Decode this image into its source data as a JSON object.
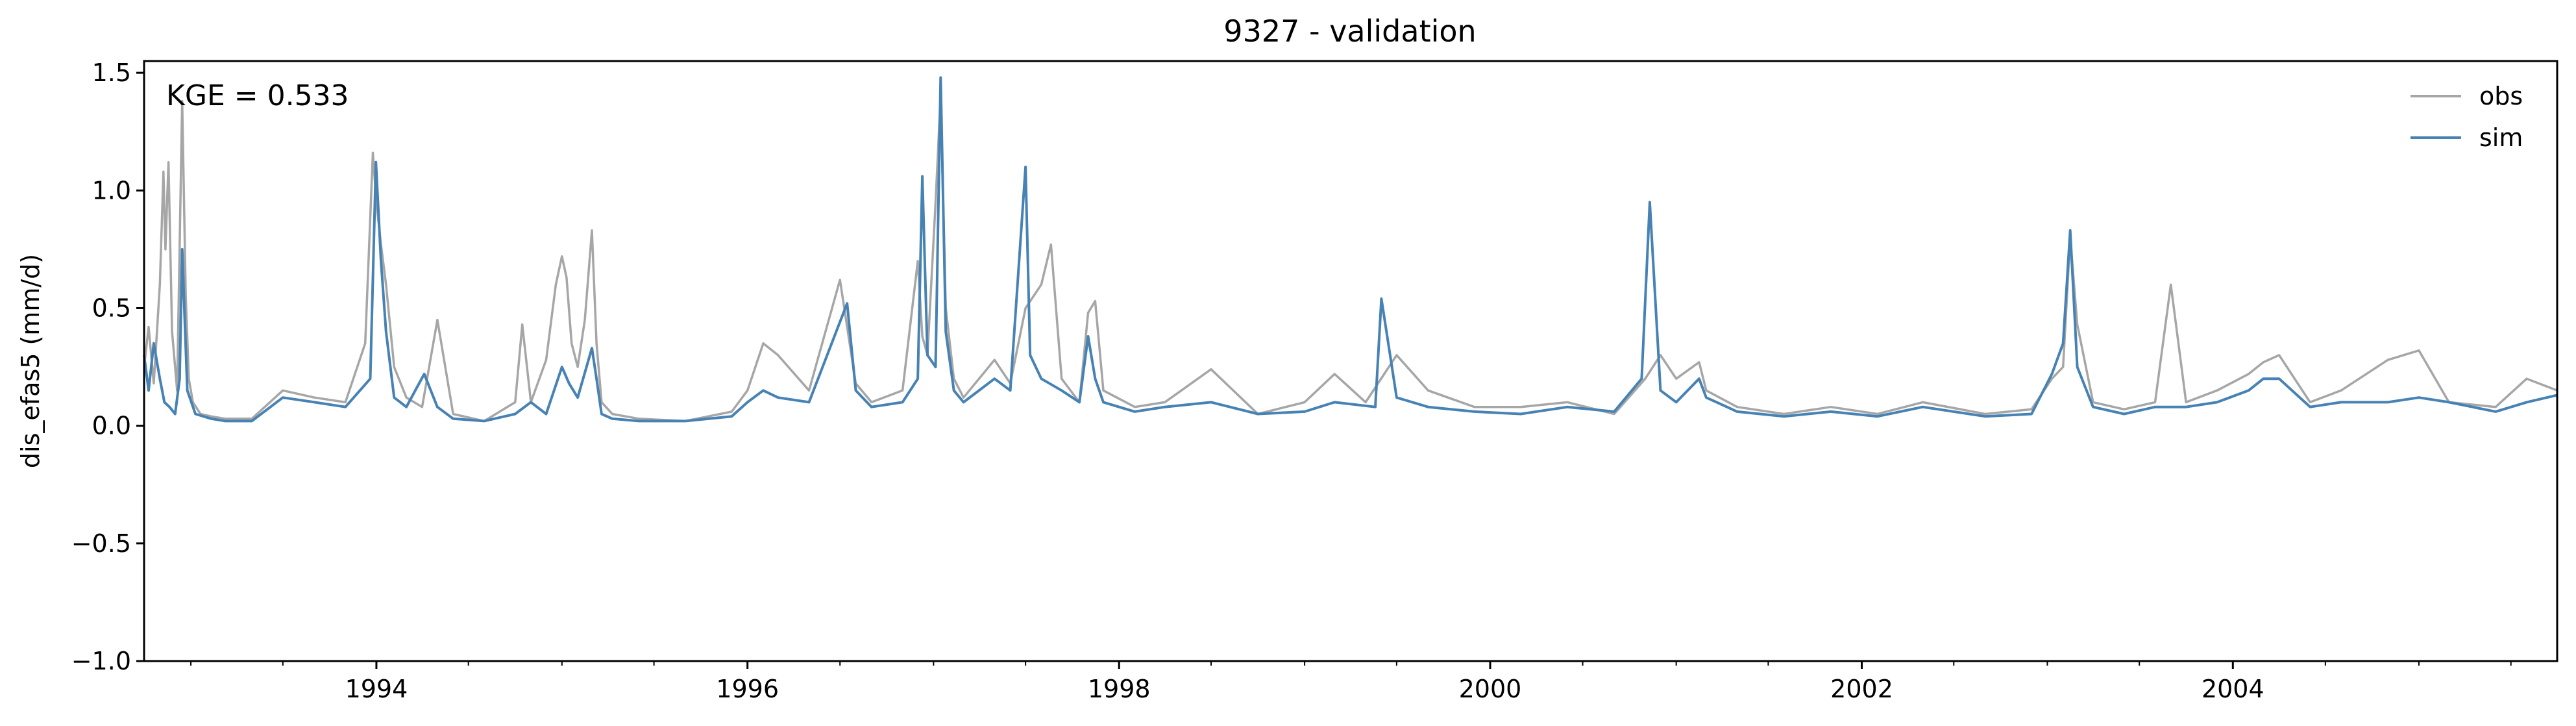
{
  "chart_data": {
    "type": "line",
    "title": "9327 - validation",
    "xlabel": "",
    "ylabel": "dis_efas5 (mm/d)",
    "annotation": "KGE = 0.533",
    "xlim": [
      "1992-10-01",
      "2005-09-30"
    ],
    "ylim": [
      -1.0,
      1.55
    ],
    "x_ticks": [
      "1994",
      "1996",
      "1998",
      "2000",
      "2002",
      "2004"
    ],
    "x_tick_dates": [
      "1994-01-01",
      "1996-01-01",
      "1998-01-01",
      "2000-01-01",
      "2002-01-01",
      "2004-01-01"
    ],
    "x_minor_tick_dates": [
      "1993-01-01",
      "1993-07-01",
      "1994-07-01",
      "1995-01-01",
      "1995-07-01",
      "1996-07-01",
      "1997-01-01",
      "1997-07-01",
      "1998-07-01",
      "1999-01-01",
      "1999-07-01",
      "2000-07-01",
      "2001-01-01",
      "2001-07-01",
      "2002-07-01",
      "2003-01-01",
      "2003-07-01",
      "2004-07-01",
      "2005-01-01",
      "2005-07-01"
    ],
    "y_ticks": [
      -1.0,
      -0.5,
      0.0,
      0.5,
      1.0,
      1.5
    ],
    "y_tick_labels": [
      "−1.0",
      "−0.5",
      "0.0",
      "0.5",
      "1.0",
      "1.5"
    ],
    "grid": false,
    "legend_position": "top-right",
    "series": [
      {
        "name": "obs",
        "color": "#a6a6a6",
        "x": [
          "1992-10-01",
          "1992-10-10",
          "1992-10-20",
          "1992-11-01",
          "1992-11-08",
          "1992-11-12",
          "1992-11-18",
          "1992-11-25",
          "1992-12-05",
          "1992-12-15",
          "1992-12-22",
          "1992-12-28",
          "1993-01-05",
          "1993-01-20",
          "1993-02-10",
          "1993-03-10",
          "1993-05-01",
          "1993-07-01",
          "1993-09-01",
          "1993-11-01",
          "1993-12-10",
          "1993-12-25",
          "1994-01-01",
          "1994-01-10",
          "1994-01-20",
          "1994-02-05",
          "1994-03-01",
          "1994-04-01",
          "1994-05-01",
          "1994-06-01",
          "1994-08-01",
          "1994-10-01",
          "1994-10-15",
          "1994-11-01",
          "1994-12-01",
          "1994-12-20",
          "1995-01-01",
          "1995-01-10",
          "1995-01-20",
          "1995-02-01",
          "1995-02-15",
          "1995-03-01",
          "1995-03-10",
          "1995-03-20",
          "1995-04-10",
          "1995-06-01",
          "1995-09-01",
          "1995-12-01",
          "1996-01-01",
          "1996-02-01",
          "1996-03-01",
          "1996-05-01",
          "1996-07-01",
          "1996-08-01",
          "1996-09-01",
          "1996-11-01",
          "1996-12-01",
          "1996-12-10",
          "1996-12-20",
          "1997-01-05",
          "1997-01-15",
          "1997-01-25",
          "1997-02-10",
          "1997-03-01",
          "1997-05-01",
          "1997-06-01",
          "1997-07-01",
          "1997-08-01",
          "1997-08-20",
          "1997-09-10",
          "1997-10-15",
          "1997-11-01",
          "1997-11-15",
          "1997-12-01",
          "1998-02-01",
          "1998-04-01",
          "1998-07-01",
          "1998-10-01",
          "1999-01-01",
          "1999-03-01",
          "1999-05-01",
          "1999-07-01",
          "1999-09-01",
          "1999-12-01",
          "2000-03-01",
          "2000-06-01",
          "2000-09-01",
          "2000-11-01",
          "2000-12-01",
          "2001-01-01",
          "2001-02-15",
          "2001-03-01",
          "2001-05-01",
          "2001-08-01",
          "2001-11-01",
          "2002-02-01",
          "2002-05-01",
          "2002-09-01",
          "2002-12-01",
          "2003-01-10",
          "2003-02-01",
          "2003-02-15",
          "2003-03-01",
          "2003-04-01",
          "2003-06-01",
          "2003-08-01",
          "2003-09-01",
          "2003-10-01",
          "2003-12-01",
          "2004-02-01",
          "2004-03-01",
          "2004-04-01",
          "2004-06-01",
          "2004-08-01",
          "2004-11-01",
          "2005-01-01",
          "2005-03-01",
          "2005-06-01",
          "2005-08-01",
          "2005-09-30"
        ],
        "y": [
          0.25,
          0.42,
          0.18,
          0.6,
          1.08,
          0.75,
          1.12,
          0.4,
          0.15,
          1.38,
          0.55,
          0.2,
          0.1,
          0.05,
          0.04,
          0.03,
          0.03,
          0.15,
          0.12,
          0.1,
          0.35,
          1.16,
          0.95,
          0.77,
          0.6,
          0.25,
          0.12,
          0.08,
          0.45,
          0.05,
          0.02,
          0.1,
          0.43,
          0.1,
          0.28,
          0.6,
          0.72,
          0.63,
          0.35,
          0.25,
          0.45,
          0.83,
          0.35,
          0.1,
          0.05,
          0.03,
          0.02,
          0.06,
          0.15,
          0.35,
          0.3,
          0.15,
          0.62,
          0.18,
          0.1,
          0.15,
          0.7,
          0.38,
          0.3,
          0.95,
          1.4,
          0.5,
          0.2,
          0.12,
          0.28,
          0.18,
          0.5,
          0.6,
          0.77,
          0.2,
          0.1,
          0.48,
          0.53,
          0.15,
          0.08,
          0.1,
          0.24,
          0.05,
          0.1,
          0.22,
          0.1,
          0.3,
          0.15,
          0.08,
          0.08,
          0.1,
          0.05,
          0.2,
          0.3,
          0.2,
          0.27,
          0.15,
          0.08,
          0.05,
          0.08,
          0.05,
          0.1,
          0.05,
          0.07,
          0.2,
          0.25,
          0.8,
          0.43,
          0.1,
          0.07,
          0.1,
          0.6,
          0.1,
          0.15,
          0.22,
          0.27,
          0.3,
          0.1,
          0.15,
          0.28,
          0.32,
          0.1,
          0.08,
          0.2,
          0.15
        ]
      },
      {
        "name": "sim",
        "color": "#4682b4",
        "x": [
          "1992-10-01",
          "1992-10-10",
          "1992-10-20",
          "1992-11-01",
          "1992-11-10",
          "1992-11-20",
          "1992-12-01",
          "1992-12-10",
          "1992-12-15",
          "1992-12-25",
          "1993-01-10",
          "1993-02-10",
          "1993-03-10",
          "1993-05-01",
          "1993-07-01",
          "1993-09-01",
          "1993-11-01",
          "1993-12-20",
          "1993-12-31",
          "1994-01-10",
          "1994-01-20",
          "1994-02-05",
          "1994-03-01",
          "1994-04-05",
          "1994-05-01",
          "1994-06-01",
          "1994-08-01",
          "1994-10-01",
          "1994-11-01",
          "1994-12-01",
          "1995-01-01",
          "1995-01-15",
          "1995-02-01",
          "1995-03-01",
          "1995-03-10",
          "1995-03-20",
          "1995-04-10",
          "1995-06-01",
          "1995-09-01",
          "1995-12-01",
          "1996-01-01",
          "1996-02-01",
          "1996-03-01",
          "1996-05-01",
          "1996-07-15",
          "1996-08-01",
          "1996-09-01",
          "1996-11-01",
          "1996-12-01",
          "1996-12-10",
          "1996-12-20",
          "1997-01-05",
          "1997-01-15",
          "1997-01-25",
          "1997-02-10",
          "1997-03-01",
          "1997-05-01",
          "1997-06-01",
          "1997-07-01",
          "1997-07-10",
          "1997-08-01",
          "1997-09-10",
          "1997-10-15",
          "1997-11-01",
          "1997-11-15",
          "1997-12-01",
          "1998-02-01",
          "1998-04-01",
          "1998-07-01",
          "1998-10-01",
          "1999-01-01",
          "1999-03-01",
          "1999-05-20",
          "1999-06-01",
          "1999-07-01",
          "1999-09-01",
          "1999-12-01",
          "2000-03-01",
          "2000-06-01",
          "2000-09-01",
          "2000-10-25",
          "2000-11-10",
          "2000-12-01",
          "2001-01-01",
          "2001-02-15",
          "2001-03-01",
          "2001-05-01",
          "2001-08-01",
          "2001-11-01",
          "2002-02-01",
          "2002-05-01",
          "2002-09-01",
          "2002-12-01",
          "2003-01-10",
          "2003-02-01",
          "2003-02-15",
          "2003-03-01",
          "2003-04-01",
          "2003-06-01",
          "2003-08-01",
          "2003-10-01",
          "2003-12-01",
          "2004-02-01",
          "2004-03-01",
          "2004-04-01",
          "2004-06-01",
          "2004-08-01",
          "2004-11-01",
          "2005-01-01",
          "2005-03-01",
          "2005-06-01",
          "2005-08-01",
          "2005-09-30"
        ],
        "y": [
          0.3,
          0.15,
          0.35,
          0.2,
          0.1,
          0.08,
          0.05,
          0.2,
          0.75,
          0.15,
          0.05,
          0.03,
          0.02,
          0.02,
          0.12,
          0.1,
          0.08,
          0.2,
          1.12,
          0.7,
          0.4,
          0.12,
          0.08,
          0.22,
          0.08,
          0.03,
          0.02,
          0.05,
          0.1,
          0.05,
          0.25,
          0.18,
          0.12,
          0.33,
          0.2,
          0.05,
          0.03,
          0.02,
          0.02,
          0.04,
          0.1,
          0.15,
          0.12,
          0.1,
          0.52,
          0.15,
          0.08,
          0.1,
          0.2,
          1.06,
          0.3,
          0.25,
          1.48,
          0.4,
          0.15,
          0.1,
          0.2,
          0.15,
          1.1,
          0.3,
          0.2,
          0.15,
          0.1,
          0.38,
          0.2,
          0.1,
          0.06,
          0.08,
          0.1,
          0.05,
          0.06,
          0.1,
          0.08,
          0.54,
          0.12,
          0.08,
          0.06,
          0.05,
          0.08,
          0.06,
          0.2,
          0.95,
          0.15,
          0.1,
          0.2,
          0.12,
          0.06,
          0.04,
          0.06,
          0.04,
          0.08,
          0.04,
          0.05,
          0.22,
          0.35,
          0.83,
          0.25,
          0.08,
          0.05,
          0.08,
          0.08,
          0.1,
          0.15,
          0.2,
          0.2,
          0.08,
          0.1,
          0.1,
          0.12,
          0.1,
          0.06,
          0.1,
          0.13
        ]
      }
    ]
  }
}
